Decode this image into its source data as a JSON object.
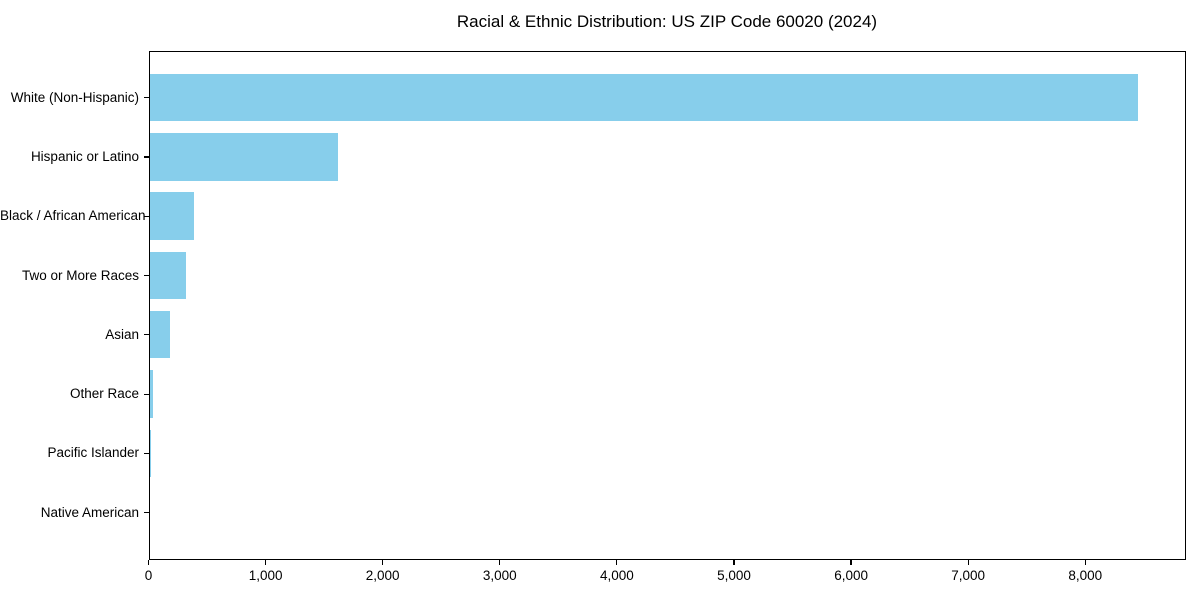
{
  "chart_data": {
    "type": "bar",
    "orientation": "horizontal",
    "title": "Racial & Ethnic Distribution: US ZIP Code 60020 (2024)",
    "categories": [
      "White (Non-Hispanic)",
      "Hispanic or Latino",
      "Black / African American",
      "Two or More Races",
      "Asian",
      "Other Race",
      "Pacific Islander",
      "Native American"
    ],
    "values": [
      8440,
      1610,
      380,
      310,
      175,
      30,
      3,
      0
    ],
    "xlabel": "",
    "ylabel": "",
    "xlim": [
      0,
      8860
    ],
    "xticks": [
      0,
      1000,
      2000,
      3000,
      4000,
      5000,
      6000,
      7000,
      8000
    ],
    "xtick_labels": [
      "0",
      "1,000",
      "2,000",
      "3,000",
      "4,000",
      "5,000",
      "6,000",
      "7,000",
      "8,000"
    ],
    "bar_color": "#87CEEB",
    "axis_color": "#000000",
    "background_color": "#ffffff",
    "grid": false,
    "legend": null,
    "bar_height_ratio": 0.8
  }
}
